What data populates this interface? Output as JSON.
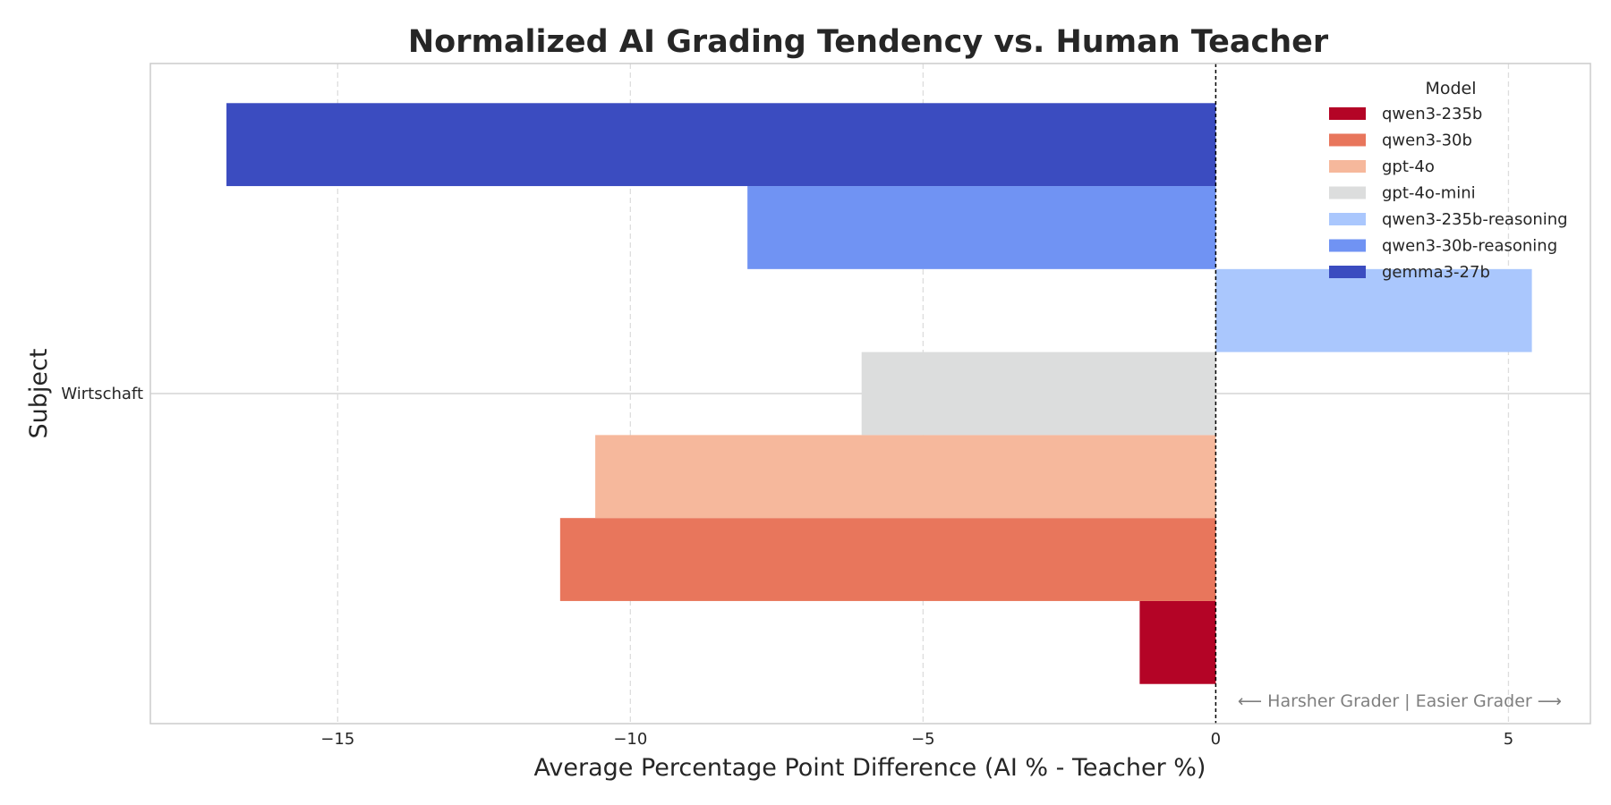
{
  "chart_data": {
    "type": "bar",
    "orientation": "horizontal",
    "title": "Normalized AI Grading Tendency vs. Human Teacher",
    "xlabel": "Average Percentage Point Difference (AI % - Teacher %)",
    "ylabel": "Subject",
    "categories": [
      "Wirtschaft"
    ],
    "xlim": [
      -18.2,
      6.4
    ],
    "xticks": [
      -15,
      -10,
      -5,
      0,
      5
    ],
    "xtick_labels": [
      "−15",
      "−10",
      "−5",
      "0",
      "5"
    ],
    "grid": true,
    "reference_line": 0,
    "legend": {
      "title": "Model",
      "placement": "top-right"
    },
    "series": [
      {
        "name": "qwen3-235b",
        "color": "#b40426",
        "values": [
          -1.3
        ]
      },
      {
        "name": "qwen3-30b",
        "color": "#e8765c",
        "values": [
          -11.2
        ]
      },
      {
        "name": "gpt-4o",
        "color": "#f6b89c",
        "values": [
          -10.6
        ]
      },
      {
        "name": "gpt-4o-mini",
        "color": "#dcdddd",
        "values": [
          -6.05
        ]
      },
      {
        "name": "qwen3-235b-reasoning",
        "color": "#aac7fd",
        "values": [
          5.4
        ]
      },
      {
        "name": "qwen3-30b-reasoning",
        "color": "#7093f3",
        "values": [
          -8.0
        ]
      },
      {
        "name": "gemma3-27b",
        "color": "#3b4cc0",
        "values": [
          -16.9
        ]
      }
    ],
    "annotation": "⟵ Harsher Grader | Easier Grader ⟶"
  }
}
